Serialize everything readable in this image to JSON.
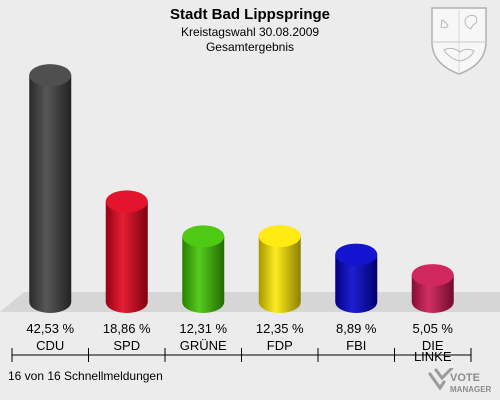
{
  "header": {
    "title": "Stadt Bad Lippspringe",
    "subtitle": "Kreistagswahl 30.08.2009",
    "subtitle2": "Gesamtergebnis"
  },
  "footer": {
    "note": "16 von 16 Schnellmeldungen"
  },
  "brand": {
    "line1": "VOTE",
    "line2": "MANAGER"
  },
  "chart_data": {
    "type": "bar",
    "categories": [
      "CDU",
      "SPD",
      "GRÜNE",
      "FDP",
      "FBI",
      "DIE LINKE"
    ],
    "category_lines": [
      [
        "CDU"
      ],
      [
        "SPD"
      ],
      [
        "GRÜNE"
      ],
      [
        "FDP"
      ],
      [
        "FBI"
      ],
      [
        "DIE",
        "LINKE"
      ]
    ],
    "values": [
      42.53,
      18.86,
      12.31,
      12.35,
      8.89,
      5.05
    ],
    "value_labels": [
      "42,53 %",
      "18,86 %",
      "12,31 %",
      "12,35 %",
      "8,89 %",
      "5,05 %"
    ],
    "colors": [
      "#404040",
      "#e3001b",
      "#3fc400",
      "#ffe800",
      "#0000cc",
      "#cc1450"
    ],
    "ylim": [
      0,
      45
    ],
    "grid": false,
    "legend": "none"
  }
}
